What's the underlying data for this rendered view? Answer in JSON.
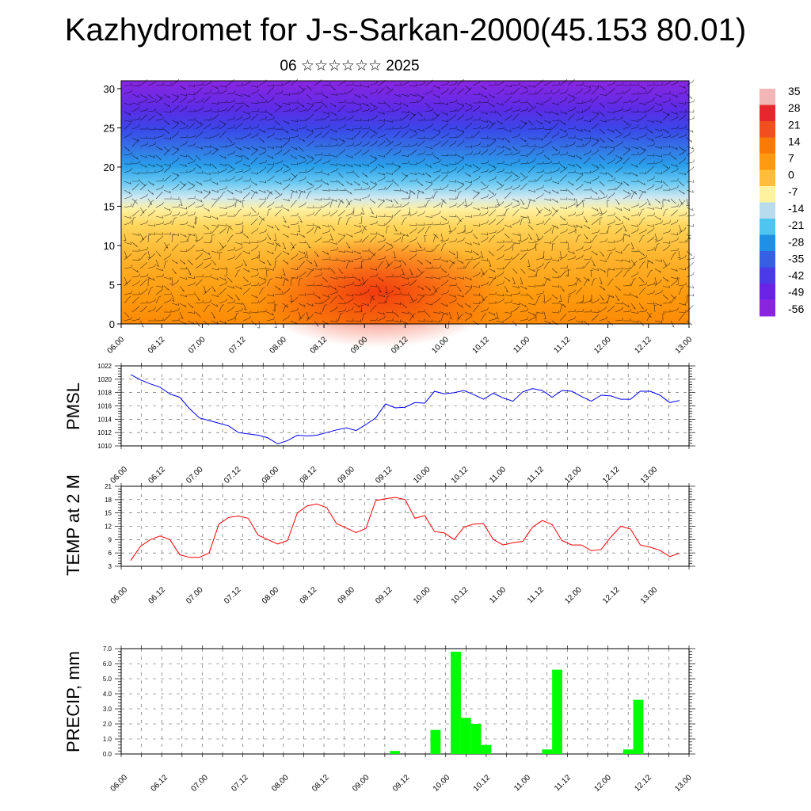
{
  "header": {
    "title": "Kazhydromet for J-s-Sarkan-2000(45.153 80.01)",
    "subtitle": "06 ☆☆☆☆☆☆ 2025"
  },
  "time_ticks": [
    "06.00",
    "06.12",
    "07.00",
    "07.12",
    "08.00",
    "08.12",
    "09.00",
    "09.12",
    "10.00",
    "10.12",
    "11.00",
    "11.12",
    "12.00",
    "12.12",
    "13.00"
  ],
  "colorbar": {
    "labels": [
      "35",
      "28",
      "21",
      "14",
      "7",
      "0",
      "-7",
      "-14",
      "-21",
      "-28",
      "-35",
      "-42",
      "-49",
      "-56"
    ],
    "colors": [
      "#f2b6b6",
      "#e8262e",
      "#f24f1f",
      "#fb7a06",
      "#ff9a10",
      "#ffbd3a",
      "#fff3a0",
      "#b8dcee",
      "#4ec4f0",
      "#1f90e8",
      "#3560e6",
      "#4a3ae8",
      "#6a22e6",
      "#8a24e0"
    ]
  },
  "chart_data": [
    {
      "type": "heatmap",
      "title": "",
      "ylabel": "",
      "ylim": [
        0,
        31
      ],
      "yticks": [
        "0",
        "5",
        "10",
        "15",
        "20",
        "25",
        "30"
      ],
      "x": [
        "06.00",
        "06.12",
        "07.00",
        "07.12",
        "08.00",
        "08.12",
        "09.00",
        "09.12",
        "10.00",
        "10.12",
        "11.00",
        "11.12",
        "12.00",
        "12.12",
        "13.00"
      ],
      "legend": "colorbar right",
      "note": "temperature with wind barbs"
    },
    {
      "type": "line",
      "ylabel": "PMSL",
      "ylim": [
        1010,
        1022
      ],
      "yticks": [
        "1010",
        "1012",
        "1014",
        "1016",
        "1018",
        "1020",
        "1022"
      ],
      "color": "#0000ff",
      "values": [
        1020.7,
        1019.9,
        1019.3,
        1018.8,
        1017.8,
        1017.3,
        1015.6,
        1014.2,
        1013.8,
        1013.4,
        1013.0,
        1012.0,
        1011.8,
        1011.6,
        1011.2,
        1010.3,
        1010.8,
        1011.6,
        1011.5,
        1011.6,
        1012.0,
        1012.4,
        1012.7,
        1012.3,
        1013.2,
        1014.2,
        1016.3,
        1015.7,
        1015.8,
        1016.5,
        1016.4,
        1018.2,
        1017.8,
        1018.0,
        1018.3,
        1017.7,
        1017.0,
        1017.9,
        1017.2,
        1016.7,
        1018.1,
        1018.6,
        1018.3,
        1017.3,
        1018.3,
        1018.2,
        1017.4,
        1016.7,
        1017.6,
        1017.5,
        1017.0,
        1017.0,
        1018.2,
        1018.2,
        1017.6,
        1016.5,
        1016.8
      ]
    },
    {
      "type": "line",
      "ylabel": "TEMP at 2 M",
      "ylim": [
        3,
        21
      ],
      "yticks": [
        "3",
        "6",
        "9",
        "12",
        "15",
        "18",
        "21"
      ],
      "color": "#ff0000",
      "values": [
        4.3,
        7.5,
        9.0,
        9.8,
        9.0,
        5.6,
        5.0,
        5.0,
        6.0,
        12.5,
        14.0,
        14.3,
        13.8,
        10.0,
        9.0,
        8.0,
        8.8,
        15.0,
        16.6,
        17.0,
        16.2,
        12.6,
        11.6,
        10.6,
        11.5,
        17.8,
        18.2,
        18.5,
        18.0,
        13.8,
        14.4,
        10.8,
        10.5,
        9.0,
        11.8,
        12.5,
        12.6,
        9.0,
        7.8,
        8.3,
        8.6,
        11.8,
        13.3,
        12.4,
        8.8,
        7.8,
        7.8,
        6.5,
        6.8,
        9.6,
        12.0,
        11.4,
        7.8,
        7.3,
        6.6,
        5.2,
        5.9
      ]
    },
    {
      "type": "bar",
      "ylabel": "PRECIP, mm",
      "ylim": [
        0,
        7
      ],
      "yticks": [
        "0.0",
        "1.0",
        "2.0",
        "3.0",
        "4.0",
        "5.0",
        "6.0",
        "7.0"
      ],
      "color": "#00ff00",
      "bars": [
        {
          "x": 13.25,
          "y": 0.2
        },
        {
          "x": 15.25,
          "y": 1.6
        },
        {
          "x": 16.25,
          "y": 6.8
        },
        {
          "x": 16.75,
          "y": 2.4
        },
        {
          "x": 17.25,
          "y": 2.0
        },
        {
          "x": 17.75,
          "y": 0.6
        },
        {
          "x": 20.75,
          "y": 0.3
        },
        {
          "x": 21.25,
          "y": 5.6
        },
        {
          "x": 24.75,
          "y": 0.3
        },
        {
          "x": 25.25,
          "y": 3.6
        }
      ]
    }
  ]
}
